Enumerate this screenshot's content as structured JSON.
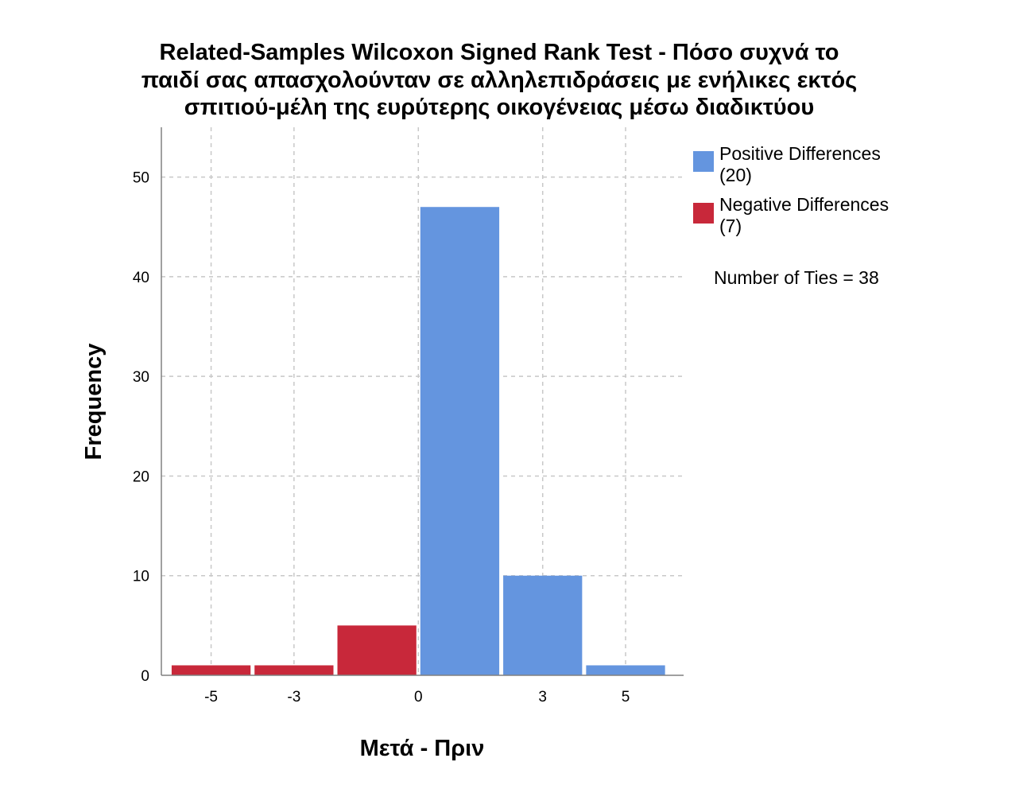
{
  "chart_data": {
    "type": "bar",
    "title_lines": [
      "Related-Samples Wilcoxon Signed Rank Test - Πόσο συχνά το",
      "παιδί σας απασχολούνταν σε αλληλεπιδράσεις με ενήλικες εκτός",
      "σπιτιού-μέλη της ευρύτερης οικογένειας μέσω διαδικτύου"
    ],
    "xlabel": "Μετά - Πριν",
    "ylabel": "Frequency",
    "xlim": [
      -6.2,
      6.4
    ],
    "ylim": [
      0,
      55
    ],
    "x_ticks": [
      {
        "value": -5,
        "label": "-5"
      },
      {
        "value": -3,
        "label": "-3"
      },
      {
        "value": 0,
        "label": "0"
      },
      {
        "value": 3,
        "label": "3"
      },
      {
        "value": 5,
        "label": "5"
      }
    ],
    "y_ticks": [
      {
        "value": 0,
        "label": "0"
      },
      {
        "value": 10,
        "label": "10"
      },
      {
        "value": 20,
        "label": "20"
      },
      {
        "value": 30,
        "label": "30"
      },
      {
        "value": 40,
        "label": "40"
      },
      {
        "value": 50,
        "label": "50"
      }
    ],
    "grid": true,
    "legend_position": "top-right",
    "series": [
      {
        "name": "Negative Differences",
        "count_label": "(7)",
        "color": "#c8283a",
        "bars": [
          {
            "x0": -6.0,
            "x1": -4.0,
            "value": 1
          },
          {
            "x0": -4.0,
            "x1": -2.0,
            "value": 1
          },
          {
            "x0": -2.0,
            "x1": 0.0,
            "value": 5
          }
        ]
      },
      {
        "name": "Positive Differences",
        "count_label": "(20)",
        "color": "#6495df",
        "bars": [
          {
            "x0": 0.0,
            "x1": 2.0,
            "value": 47
          },
          {
            "x0": 2.0,
            "x1": 4.0,
            "value": 10
          },
          {
            "x0": 4.0,
            "x1": 6.0,
            "value": 1
          }
        ]
      }
    ],
    "legend_order": [
      "Positive Differences",
      "Negative Differences"
    ],
    "annotation": "Number of Ties = 38"
  }
}
